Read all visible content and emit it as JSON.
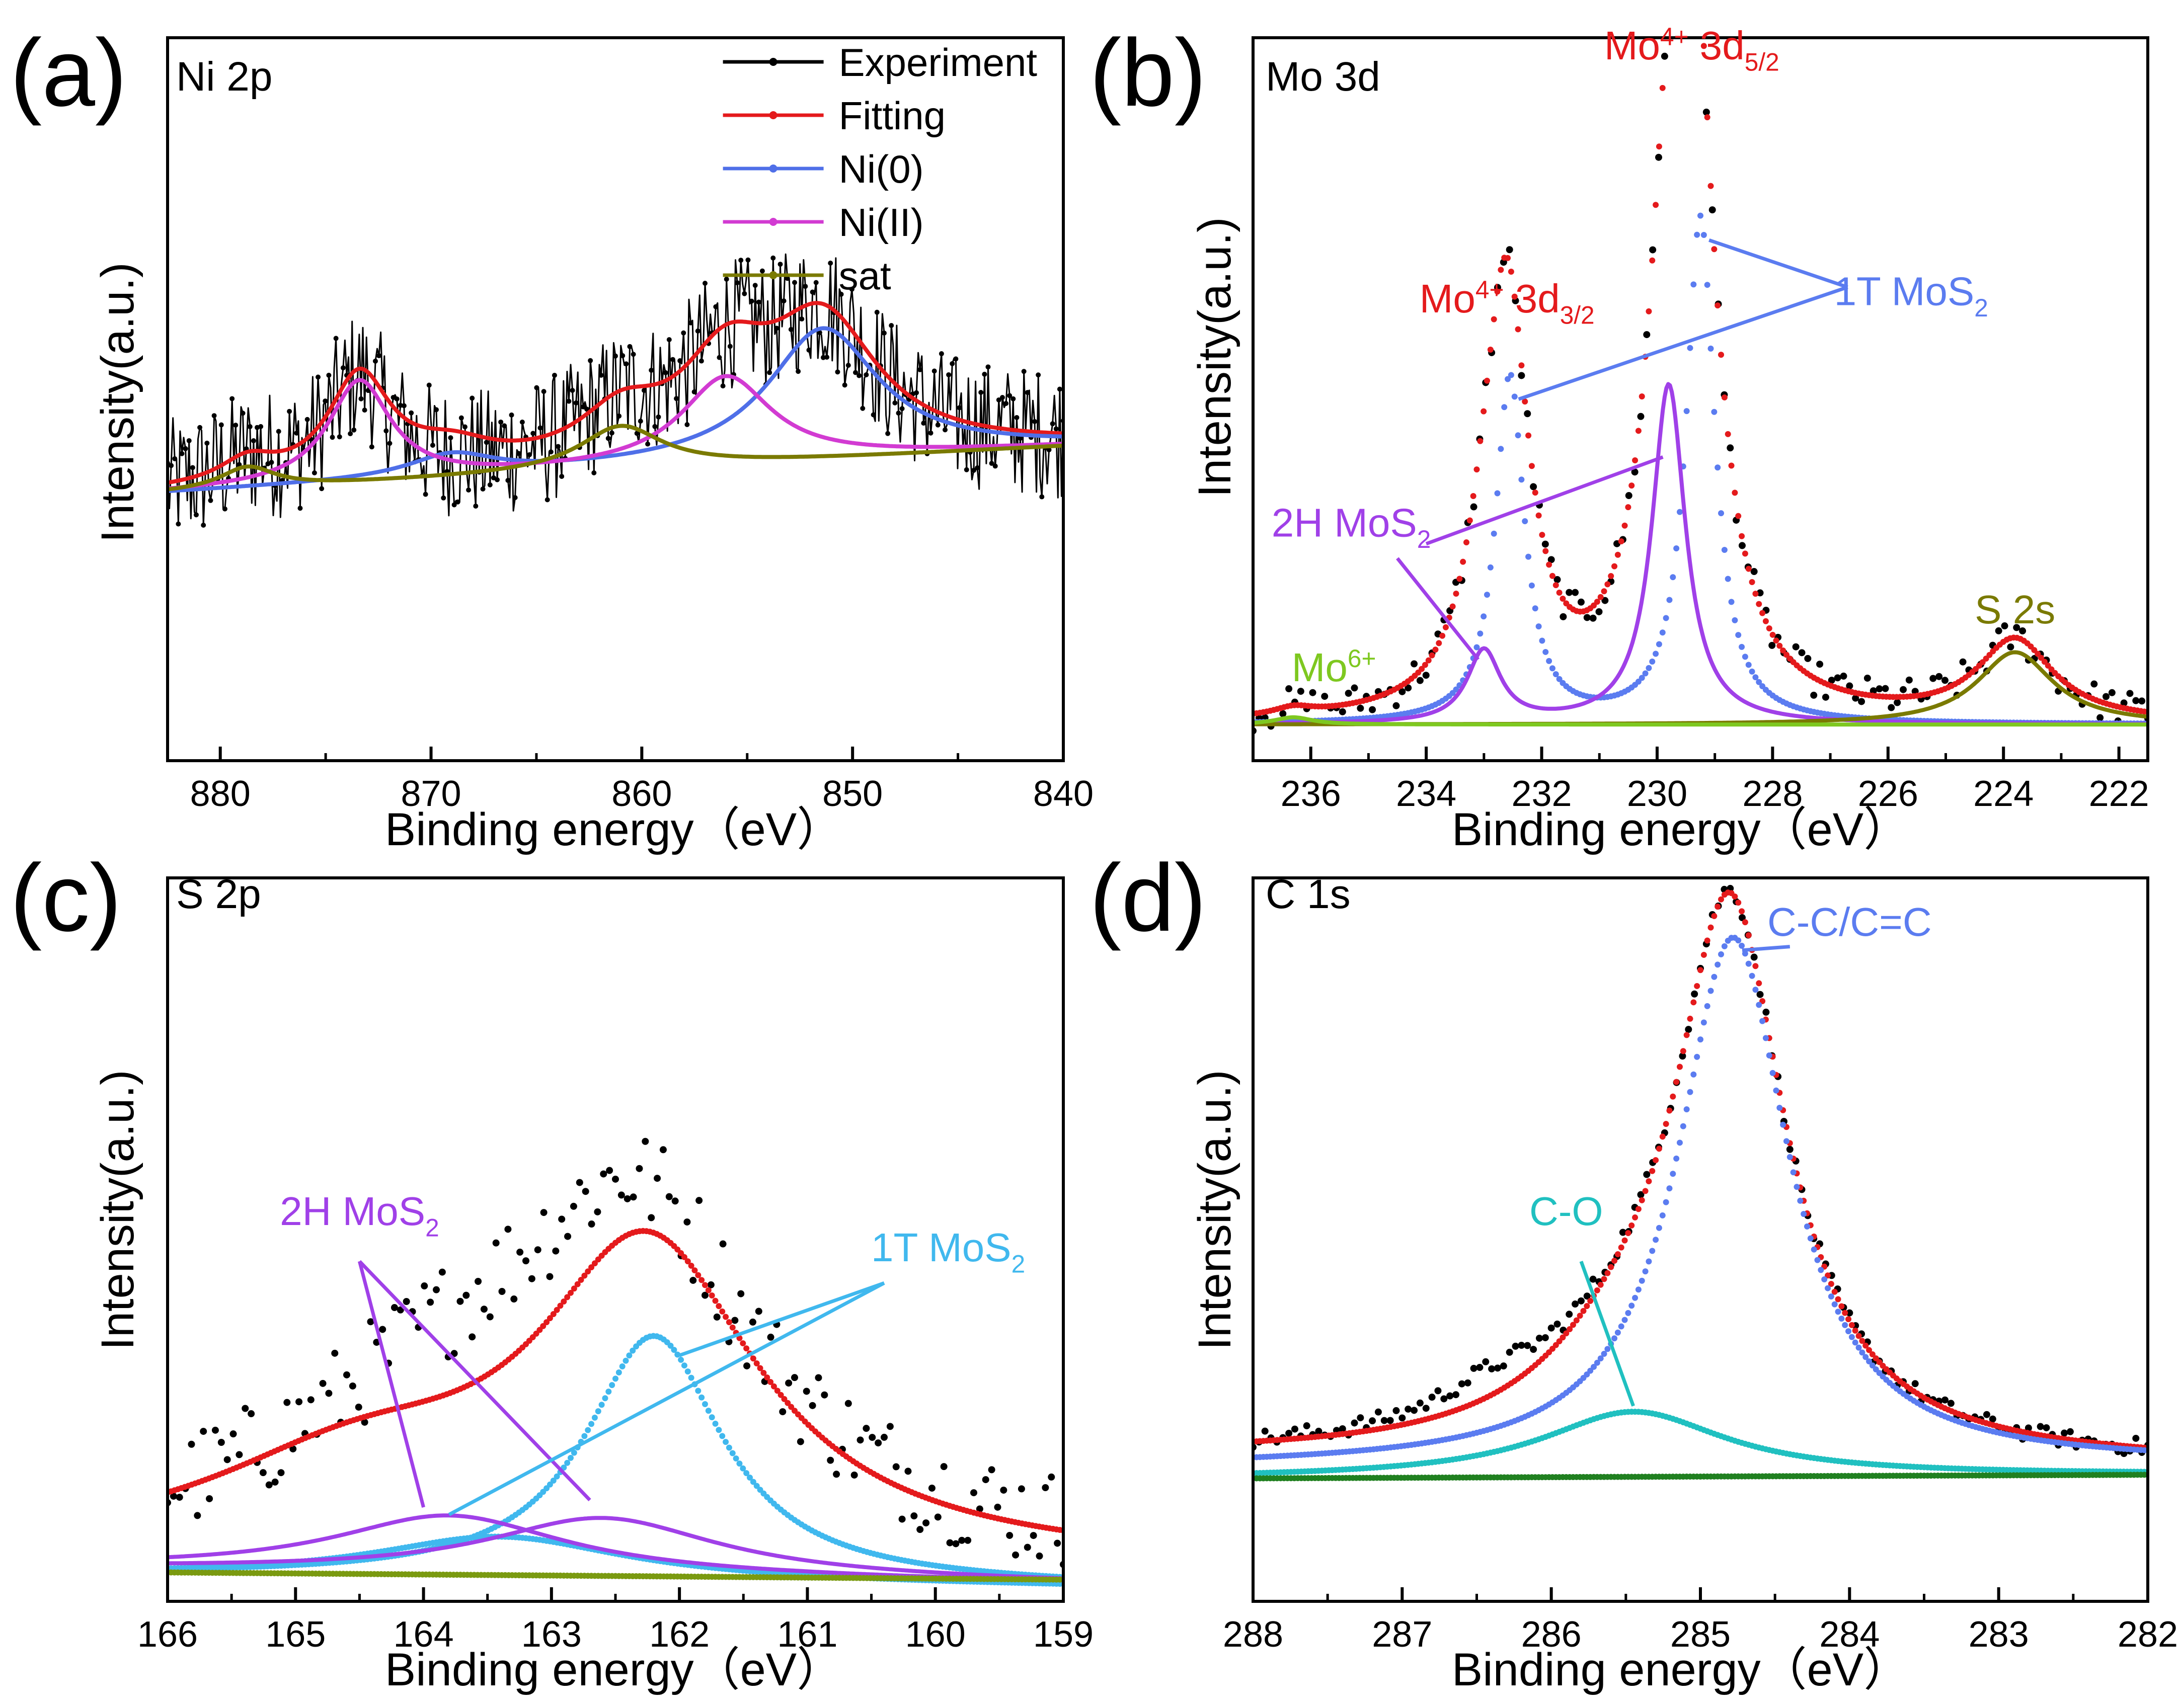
{
  "chart_data": [
    {
      "type": "line",
      "panel_label": "(a)",
      "title": "Ni 2p",
      "xlabel": "Binding energy（eV）",
      "ylabel": "Intensity(a.u.)",
      "xlim": [
        882.5,
        840
      ],
      "x_ticks": [
        880,
        870,
        860,
        850,
        840
      ],
      "ylim": [
        0,
        1
      ],
      "legend": {
        "placement": "top-right",
        "entries": [
          "Experiment",
          "Fitting",
          "Ni(0)",
          "Ni(II)",
          "sat"
        ]
      },
      "series": [
        {
          "name": "Experiment",
          "color": "#000000",
          "style": "noisy-line",
          "peaks": [
            [
              873.4,
              0.14,
              1.8
            ],
            [
              856,
              0.12,
              2.6
            ],
            [
              851.4,
              0.18,
              3.2
            ],
            [
              861,
              0.06,
              2.4
            ],
            [
              878.7,
              0.03,
              1.6
            ]
          ],
          "baseline": [
            0.37,
            0.435
          ],
          "noise": 0.09
        },
        {
          "name": "Fitting",
          "color": "#e41a1c",
          "style": "line",
          "peaks": [
            [
              873.4,
              0.14,
              1.8
            ],
            [
              869,
              0.03,
              2.5
            ],
            [
              861,
              0.06,
              2.4
            ],
            [
              856,
              0.12,
              2.6
            ],
            [
              851.4,
              0.18,
              3.2
            ],
            [
              878.7,
              0.03,
              1.6
            ]
          ],
          "baseline": [
            0.37,
            0.435
          ]
        },
        {
          "name": "Ni(0)",
          "color": "#4f6fe8",
          "style": "line",
          "peaks": [
            [
              869,
              0.03,
              2.5
            ],
            [
              851.4,
              0.18,
              3.2
            ]
          ],
          "baseline": [
            0.37,
            0.435
          ]
        },
        {
          "name": "Ni(II)",
          "color": "#d23bd2",
          "style": "line",
          "peaks": [
            [
              873.4,
              0.14,
              1.8
            ],
            [
              856,
              0.12,
              2.6
            ]
          ],
          "baseline": [
            0.37,
            0.435
          ]
        },
        {
          "name": "sat",
          "color": "#7a7a00",
          "style": "line",
          "peaks": [
            [
              878.7,
              0.03,
              1.6
            ],
            [
              861,
              0.06,
              2.4
            ]
          ],
          "baseline": [
            0.37,
            0.435
          ]
        }
      ],
      "annotations": []
    },
    {
      "type": "line",
      "panel_label": "(b)",
      "title": "Mo 3d",
      "xlabel": "Binding energy（eV）",
      "ylabel": "Intensity(a.u.)",
      "xlim": [
        237,
        221.5
      ],
      "x_ticks": [
        236,
        234,
        232,
        230,
        228,
        226,
        224,
        222
      ],
      "ylim": [
        0,
        1
      ],
      "series": [
        {
          "name": "Experiment",
          "color": "#000000",
          "style": "points",
          "peaks": [
            [
              232.6,
              0.56,
              0.45
            ],
            [
              229.4,
              0.92,
              0.45
            ],
            [
              233.0,
              0.1,
              0.45
            ],
            [
              229.8,
              0.48,
              0.45
            ],
            [
              223.8,
              0.11,
              0.8
            ],
            [
              236.3,
              0.01,
              0.4
            ]
          ],
          "baseline": [
            0.05,
            0.05
          ],
          "noise": 0.025
        },
        {
          "name": "Fitting",
          "color": "#e41a1c",
          "style": "dots",
          "peaks": [
            [
              232.6,
              0.56,
              0.45
            ],
            [
              229.4,
              0.92,
              0.45
            ],
            [
              233.0,
              0.1,
              0.45
            ],
            [
              229.8,
              0.48,
              0.45
            ],
            [
              223.8,
              0.11,
              0.8
            ],
            [
              236.3,
              0.01,
              0.4
            ]
          ],
          "baseline": [
            0.05,
            0.05
          ]
        },
        {
          "name": "1T MoS2",
          "color": "#5b7cf0",
          "style": "dots",
          "peaks": [
            [
              232.55,
              0.48,
              0.3
            ],
            [
              229.25,
              0.7,
              0.3
            ]
          ],
          "baseline": [
            0.05,
            0.05
          ]
        },
        {
          "name": "2H MoS2",
          "color": "#a040e8",
          "style": "line",
          "peaks": [
            [
              233.0,
              0.1,
              0.35
            ],
            [
              229.8,
              0.47,
              0.35
            ]
          ],
          "baseline": [
            0.05,
            0.05
          ]
        },
        {
          "name": "S 2s",
          "color": "#7a7a00",
          "style": "line",
          "peaks": [
            [
              223.8,
              0.1,
              0.8
            ]
          ],
          "baseline": [
            0.05,
            0.05
          ]
        },
        {
          "name": "Mo6+",
          "color": "#7ec820",
          "style": "line",
          "peaks": [
            [
              236.3,
              0.01,
              0.4
            ]
          ],
          "baseline": [
            0.05,
            0.05
          ]
        }
      ],
      "annotations": [
        {
          "text": "Mo",
          "sup": "4+",
          "text2": " 3d",
          "sub": "5/2",
          "color": "#e41a1c",
          "x": 229.4,
          "y": 0.97
        },
        {
          "text": "Mo",
          "sup": "4+",
          "text2": " 3d",
          "sub": "3/2",
          "color": "#e41a1c",
          "x": 232.6,
          "y": 0.62
        },
        {
          "text": "1T MoS",
          "sub": "2",
          "color": "#5b7cf0",
          "x": 225.6,
          "y": 0.63
        },
        {
          "text": "2H MoS",
          "sub": "2",
          "color": "#a040e8",
          "x": 235.3,
          "y": 0.31
        },
        {
          "text": "Mo",
          "sup": "6+",
          "color": "#7ec820",
          "x": 235.6,
          "y": 0.11
        },
        {
          "text": "S 2s",
          "color": "#7a7a00",
          "x": 223.8,
          "y": 0.19
        }
      ]
    },
    {
      "type": "line",
      "panel_label": "(c)",
      "title": "S 2p",
      "xlabel": "Binding energy（eV）",
      "ylabel": "Intensity(a.u.)",
      "xlim": [
        166,
        159
      ],
      "x_ticks": [
        166,
        165,
        164,
        163,
        162,
        161,
        160,
        159
      ],
      "ylim": [
        0,
        1
      ],
      "series": [
        {
          "name": "Experiment",
          "color": "#000000",
          "style": "points",
          "peaks": [
            [
              162.3,
              0.43,
              1.1
            ],
            [
              163.8,
              0.2,
              1.5
            ]
          ],
          "baseline": [
            0.06,
            0.05
          ],
          "noise": 0.07
        },
        {
          "name": "Fitting",
          "color": "#e41a1c",
          "style": "dots",
          "peaks": [
            [
              162.25,
              0.42,
              1.05
            ],
            [
              164.5,
              0.12,
              1.5
            ]
          ],
          "baseline": [
            0.06,
            0.05
          ]
        },
        {
          "name": "1T MoS2 a",
          "color": "#40b8ee",
          "style": "dots",
          "peaks": [
            [
              162.2,
              0.34,
              0.65
            ]
          ],
          "baseline": [
            0.035,
            0.02
          ]
        },
        {
          "name": "1T MoS2 b",
          "color": "#40b8ee",
          "style": "dots",
          "peaks": [
            [
              163.4,
              0.06,
              1.2
            ]
          ],
          "baseline": [
            0.035,
            0.02
          ]
        },
        {
          "name": "2H MoS2 a",
          "color": "#a040e8",
          "style": "line",
          "peaks": [
            [
              163.8,
              0.08,
              1.1
            ]
          ],
          "baseline": [
            0.045,
            0.025
          ]
        },
        {
          "name": "2H MoS2 b",
          "color": "#a040e8",
          "style": "line",
          "peaks": [
            [
              162.6,
              0.08,
              1.1
            ]
          ],
          "baseline": [
            0.045,
            0.025
          ]
        },
        {
          "name": "background",
          "color": "#7a9a10",
          "style": "dots",
          "peaks": [],
          "baseline": [
            0.04,
            0.03
          ]
        }
      ],
      "annotations": [
        {
          "text": "2H MoS",
          "sub": "2",
          "color": "#a040e8",
          "x": 164.5,
          "y": 0.52
        },
        {
          "text": "1T MoS",
          "sub": "2",
          "color": "#40b8ee",
          "x": 159.9,
          "y": 0.47
        }
      ]
    },
    {
      "type": "line",
      "panel_label": "(d)",
      "title": "C 1s",
      "xlabel": "Binding energy（eV）",
      "ylabel": "Intensity(a.u.)",
      "xlim": [
        288,
        282
      ],
      "x_ticks": [
        288,
        287,
        286,
        285,
        284,
        283,
        282
      ],
      "ylim": [
        0,
        1
      ],
      "series": [
        {
          "name": "Experiment",
          "color": "#000000",
          "style": "points",
          "peaks": [
            [
              284.8,
              0.74,
              0.45
            ],
            [
              285.5,
              0.09,
              0.7
            ],
            [
              286.4,
              0.04,
              0.5
            ]
          ],
          "baseline": [
            0.2,
            0.19
          ],
          "noise": 0.012
        },
        {
          "name": "Fitting",
          "color": "#e41a1c",
          "style": "dots",
          "peaks": [
            [
              284.8,
              0.74,
              0.45
            ],
            [
              285.5,
              0.09,
              0.7
            ]
          ],
          "baseline": [
            0.2,
            0.19
          ]
        },
        {
          "name": "C-C/C=C",
          "color": "#5b7cf0",
          "style": "dots",
          "peaks": [
            [
              284.78,
              0.73,
              0.45
            ]
          ],
          "baseline": [
            0.185,
            0.19
          ]
        },
        {
          "name": "C-O",
          "color": "#20c0c0",
          "style": "dots",
          "peaks": [
            [
              285.45,
              0.09,
              0.75
            ]
          ],
          "baseline": [
            0.17,
            0.175
          ]
        },
        {
          "name": "background",
          "color": "#208020",
          "style": "dots",
          "peaks": [],
          "baseline": [
            0.17,
            0.175
          ]
        }
      ],
      "annotations": [
        {
          "text": "C-C/C=C",
          "color": "#5b7cf0",
          "x": 284.0,
          "y": 0.92
        },
        {
          "text": "C-O",
          "color": "#20c0c0",
          "x": 285.9,
          "y": 0.52
        }
      ]
    }
  ]
}
